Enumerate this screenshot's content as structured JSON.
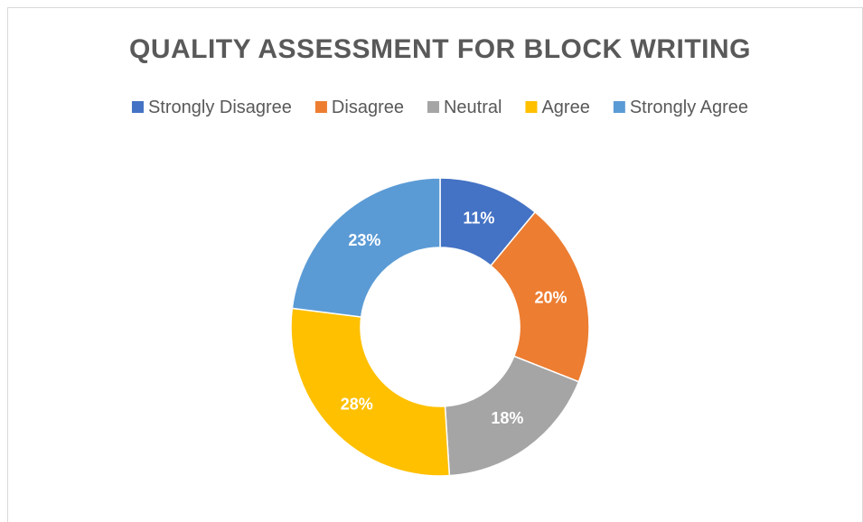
{
  "chart_data": {
    "type": "donut",
    "title": "QUALITY ASSESSMENT FOR BLOCK WRITING",
    "categories": [
      "Strongly Disagree",
      "Disagree",
      "Neutral",
      "Agree",
      "Strongly Agree"
    ],
    "values": [
      11,
      20,
      18,
      28,
      23
    ],
    "value_labels": [
      "11%",
      "20%",
      "18%",
      "28%",
      "23%"
    ],
    "colors": [
      "#4472c4",
      "#ed7d31",
      "#a5a5a5",
      "#ffc000",
      "#5b9bd5"
    ],
    "legend": "top"
  }
}
